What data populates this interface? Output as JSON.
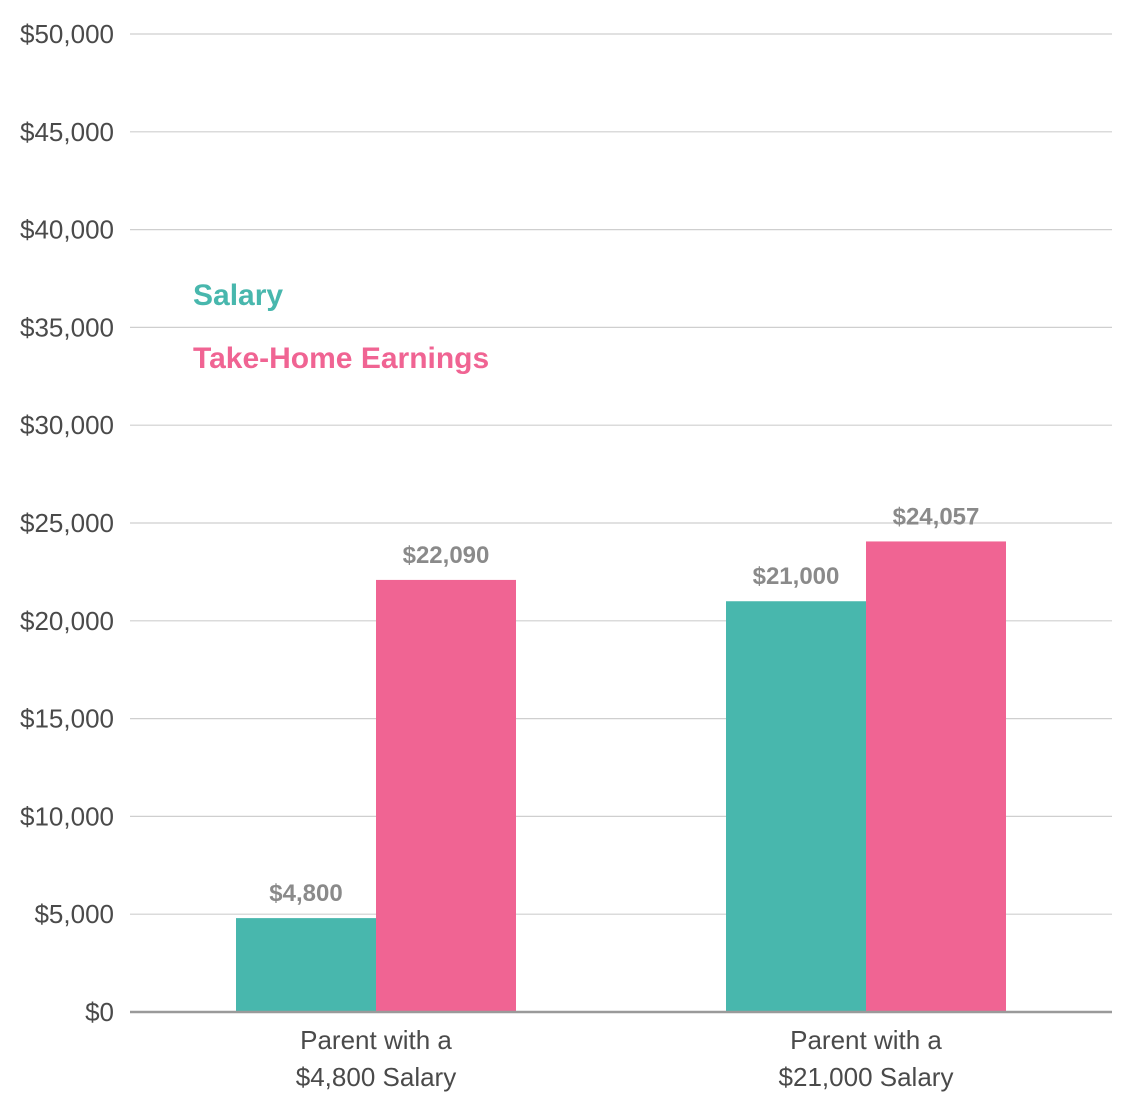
{
  "chart_data": {
    "type": "bar",
    "categories": [
      [
        "Parent with a",
        "$4,800 Salary"
      ],
      [
        "Parent with a",
        "$21,000 Salary"
      ]
    ],
    "series": [
      {
        "name": "Salary",
        "color": "#48b7ad",
        "values": [
          4800,
          21000
        ],
        "labels": [
          "$4,800",
          "$21,000"
        ]
      },
      {
        "name": "Take-Home Earnings",
        "color": "#f06493",
        "values": [
          22090,
          24057
        ],
        "labels": [
          "$22,090",
          "$24,057"
        ]
      }
    ],
    "ylim": [
      0,
      50000
    ],
    "yticks": [
      0,
      5000,
      10000,
      15000,
      20000,
      25000,
      30000,
      35000,
      40000,
      45000,
      50000
    ],
    "ytick_labels": [
      "$0",
      "$5,000",
      "$10,000",
      "$15,000",
      "$20,000",
      "$25,000",
      "$30,000",
      "$35,000",
      "$40,000",
      "$45,000",
      "$50,000"
    ],
    "grid": true,
    "legend_position": "upper-left"
  }
}
